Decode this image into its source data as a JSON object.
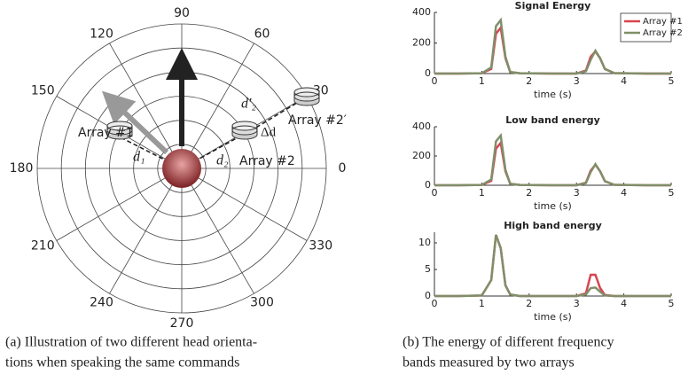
{
  "diagram": {
    "angle_labels": [
      90,
      60,
      30,
      0,
      330,
      300,
      270,
      240,
      210,
      180,
      150,
      120
    ],
    "labels": {
      "array1": "Array #1",
      "array2": "Array #2",
      "array2p": "Array #2′",
      "d1": "d₁",
      "d2": "d₂",
      "d2p": "d′₂",
      "delta_d": "Δd"
    }
  },
  "chart_data": [
    {
      "type": "line",
      "title": "Signal Energy",
      "xlabel": "time (s)",
      "x": [
        0,
        0.5,
        1.0,
        1.2,
        1.3,
        1.4,
        1.5,
        1.6,
        1.8,
        2.5,
        3.0,
        3.2,
        3.3,
        3.4,
        3.5,
        3.6,
        3.8,
        4.5,
        5.0
      ],
      "xlim": [
        0,
        5
      ],
      "xticks": [
        0,
        1,
        2,
        3,
        4,
        5
      ],
      "ylim": [
        0,
        400
      ],
      "yticks": [
        0,
        200,
        400
      ],
      "legend": "upper right",
      "series": [
        {
          "name": "Array #1",
          "color": "#d9434f",
          "values": [
            0,
            0,
            2,
            30,
            260,
            300,
            100,
            10,
            2,
            0,
            0,
            20,
            110,
            145,
            100,
            30,
            3,
            0,
            0
          ]
        },
        {
          "name": "Array #2",
          "color": "#7f8f6a",
          "values": [
            0,
            0,
            2,
            40,
            310,
            350,
            110,
            10,
            2,
            0,
            0,
            15,
            90,
            150,
            100,
            30,
            3,
            0,
            0
          ]
        }
      ]
    },
    {
      "type": "line",
      "title": "Low band energy",
      "xlabel": "time (s)",
      "x": [
        0,
        0.5,
        1.0,
        1.2,
        1.3,
        1.4,
        1.5,
        1.6,
        1.8,
        2.5,
        3.0,
        3.2,
        3.3,
        3.4,
        3.5,
        3.6,
        3.8,
        4.5,
        5.0
      ],
      "xlim": [
        0,
        5
      ],
      "xticks": [
        0,
        1,
        2,
        3,
        4,
        5
      ],
      "ylim": [
        0,
        400
      ],
      "yticks": [
        0,
        200,
        400
      ],
      "series": [
        {
          "color": "#d9434f",
          "values": [
            0,
            0,
            2,
            30,
            250,
            290,
            95,
            10,
            2,
            0,
            0,
            18,
            100,
            140,
            95,
            28,
            3,
            0,
            0
          ]
        },
        {
          "color": "#7f8f6a",
          "values": [
            0,
            0,
            2,
            40,
            300,
            340,
            105,
            10,
            2,
            0,
            0,
            15,
            90,
            145,
            95,
            28,
            3,
            0,
            0
          ]
        }
      ]
    },
    {
      "type": "line",
      "title": "High band energy",
      "xlabel": "time (s)",
      "x": [
        0,
        0.5,
        1.0,
        1.2,
        1.3,
        1.4,
        1.5,
        1.6,
        1.8,
        2.5,
        3.0,
        3.2,
        3.3,
        3.4,
        3.5,
        3.6,
        3.8,
        4.5,
        5.0
      ],
      "xlim": [
        0,
        5
      ],
      "xticks": [
        0,
        1,
        2,
        3,
        4,
        5
      ],
      "ylim": [
        0,
        12
      ],
      "yticks": [
        0,
        5,
        10
      ],
      "series": [
        {
          "color": "#d9434f",
          "values": [
            0,
            0,
            0.1,
            3,
            11.5,
            9,
            2,
            0.3,
            0,
            0,
            0,
            0.5,
            4,
            4,
            1.5,
            0.2,
            0,
            0,
            0
          ]
        },
        {
          "color": "#7f8f6a",
          "values": [
            0,
            0,
            0.1,
            3,
            11.5,
            9,
            2,
            0.3,
            0,
            0,
            0,
            0.3,
            1.5,
            1.6,
            0.8,
            0.1,
            0,
            0,
            0
          ]
        }
      ]
    }
  ],
  "captions": [
    [
      "(a)  Illustration of two different head orienta-",
      "tions when speaking the same commands"
    ],
    [
      "(b)  The energy of different frequency",
      "bands measured by two arrays"
    ]
  ]
}
